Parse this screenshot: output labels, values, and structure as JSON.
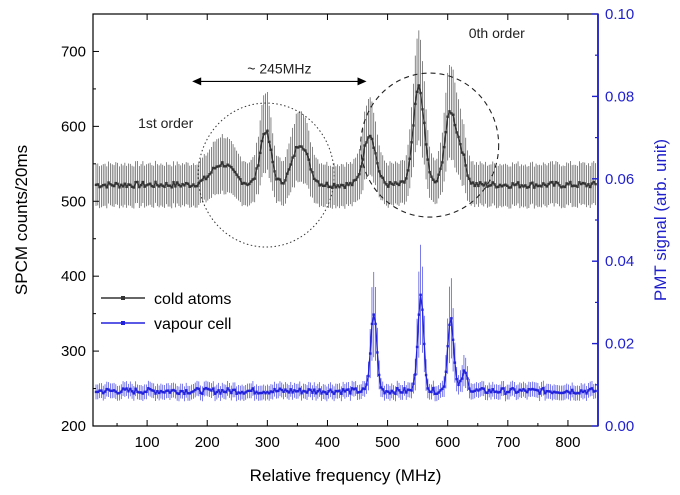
{
  "chart_data": {
    "type": "line",
    "xlabel": "Relative frequency (MHz)",
    "ylabel": "SPCM counts/20ms",
    "y2label": "PMT signal (arb. unit)",
    "xlim": [
      10,
      850
    ],
    "ylim": [
      200,
      750
    ],
    "y2lim": [
      0.0,
      0.1
    ],
    "x_ticks": [
      100,
      200,
      300,
      400,
      500,
      600,
      700,
      800
    ],
    "y_ticks": [
      200,
      300,
      400,
      500,
      600,
      700
    ],
    "y2_ticks": [
      "0.00",
      "0.02",
      "0.04",
      "0.06",
      "0.08",
      "0.10"
    ],
    "y2_tick_values": [
      0.0,
      0.02,
      0.04,
      0.06,
      0.08,
      0.1
    ],
    "legend_position": "left-middle",
    "colors": {
      "axis_left": "#000000",
      "axis_right": "#1f1fcc",
      "series1": "#333333",
      "series2": "#2222dd"
    },
    "annotations": {
      "spacing_label": "~ 245MHz",
      "first_order_label": "1st order",
      "zeroth_order_label": "0th order"
    },
    "series": [
      {
        "name": "cold atoms",
        "axis": "left",
        "baseline": 522,
        "error": 28,
        "peaks": [
          {
            "x": 225,
            "height": 28,
            "width": 18
          },
          {
            "x": 297,
            "height": 72,
            "width": 9
          },
          {
            "x": 355,
            "height": 55,
            "width": 13
          },
          {
            "x": 470,
            "height": 68,
            "width": 10
          },
          {
            "x": 552,
            "height": 130,
            "width": 9
          },
          {
            "x": 604,
            "height": 95,
            "width": 9
          },
          {
            "x": 622,
            "height": 40,
            "width": 8
          }
        ]
      },
      {
        "name": "vapour cell",
        "axis": "right",
        "baseline": 0.0085,
        "error": 0.0018,
        "peaks": [
          {
            "x": 477,
            "height": 0.019,
            "width": 5
          },
          {
            "x": 555,
            "height": 0.023,
            "width": 5
          },
          {
            "x": 605,
            "height": 0.018,
            "width": 5
          },
          {
            "x": 628,
            "height": 0.0045,
            "width": 5
          }
        ]
      }
    ]
  }
}
